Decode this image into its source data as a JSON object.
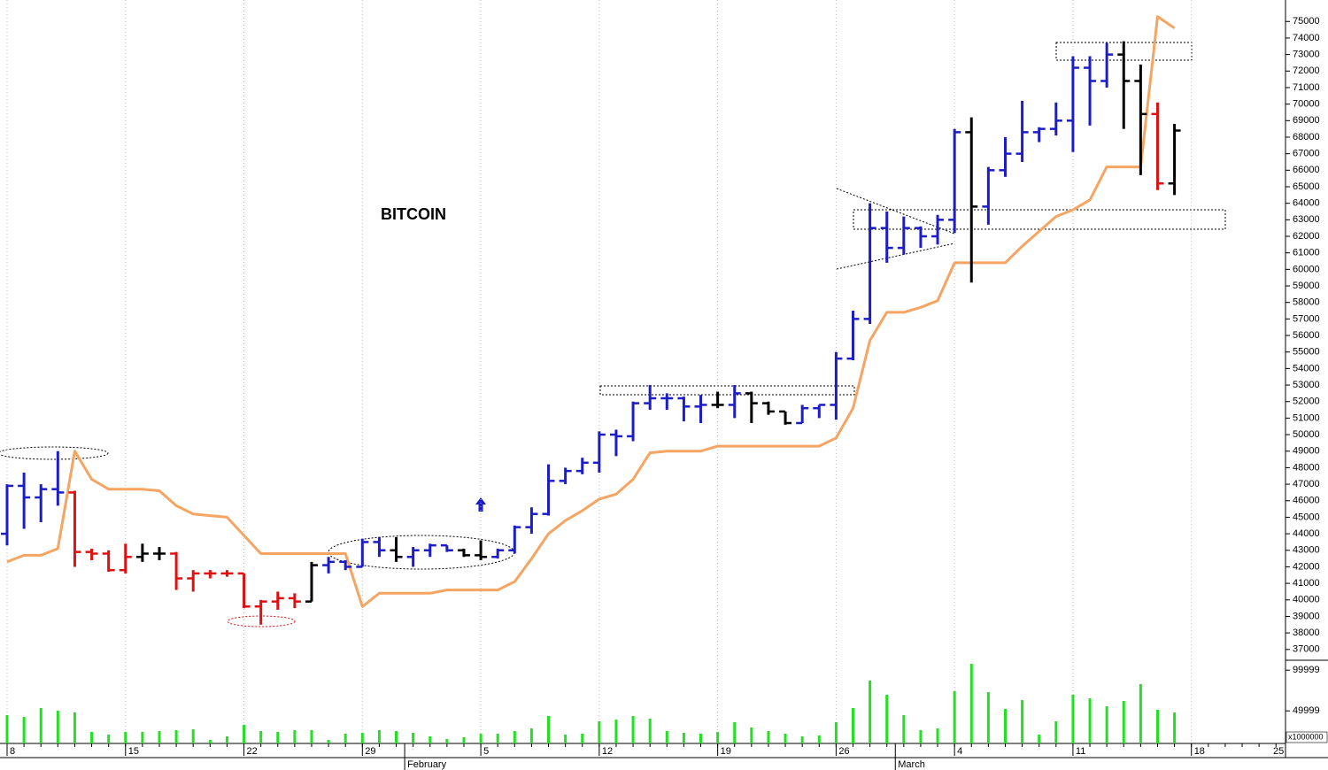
{
  "chart_data": {
    "type": "ohlc",
    "title": "BITCOIN",
    "categories": [
      "8",
      null,
      null,
      null,
      null,
      null,
      null,
      "15",
      null,
      null,
      null,
      null,
      null,
      null,
      "22",
      null,
      null,
      null,
      null,
      null,
      null,
      "29",
      null,
      null,
      null,
      null,
      null,
      null,
      "5",
      null,
      null,
      null,
      null,
      null,
      null,
      "12",
      null,
      null,
      null,
      null,
      null,
      null,
      "19",
      null,
      null,
      null,
      null,
      null,
      null,
      "26",
      null,
      null,
      null,
      null,
      null,
      null,
      "4",
      null,
      null,
      null,
      null,
      null,
      null,
      "11",
      null,
      null,
      null,
      null,
      null,
      null,
      "18",
      null,
      null,
      null,
      null,
      null,
      null,
      "25"
    ],
    "months": [
      null,
      null,
      null,
      null,
      null,
      null,
      null,
      null,
      null,
      null,
      null,
      null,
      null,
      null,
      null,
      null,
      null,
      null,
      null,
      null,
      null,
      null,
      null,
      null,
      "February",
      null,
      null,
      null,
      null,
      null,
      null,
      null,
      null,
      null,
      null,
      null,
      null,
      null,
      null,
      null,
      null,
      null,
      null,
      null,
      null,
      null,
      null,
      null,
      null,
      null,
      null,
      null,
      null,
      "March",
      null,
      null,
      null,
      null,
      null,
      null,
      null,
      null,
      null,
      null,
      null,
      null,
      null,
      null,
      null,
      null,
      null,
      null,
      null,
      null,
      null,
      null,
      null,
      null
    ],
    "open": [
      44000,
      46900,
      46200,
      46700,
      46500,
      42900,
      42800,
      41800,
      42600,
      42800,
      42800,
      41300,
      41600,
      41600,
      41600,
      39600,
      39900,
      40100,
      39900,
      42100,
      42300,
      42000,
      43500,
      43000,
      42600,
      43000,
      43300,
      43000,
      42700,
      42600,
      43000,
      44400,
      45200,
      47200,
      47800,
      48300,
      50000,
      49900,
      51900,
      52200,
      52200,
      51700,
      51800,
      51800,
      52500,
      51900,
      51400,
      50700,
      51600,
      51800,
      54600,
      57000,
      62500,
      61300,
      62500,
      62000,
      63000,
      68300,
      63800,
      66000,
      67000,
      68300,
      68500,
      69000,
      72200,
      71400,
      73000,
      71400,
      69400,
      65200,
      null,
      null,
      null,
      null,
      null,
      null,
      null,
      null
    ],
    "high": [
      47000,
      47700,
      47000,
      49000,
      46600,
      43100,
      43000,
      43400,
      43400,
      43200,
      42900,
      41800,
      41800,
      41800,
      41600,
      40000,
      40500,
      40400,
      42300,
      42600,
      42400,
      43700,
      43800,
      43800,
      43200,
      43400,
      43300,
      43100,
      43600,
      43100,
      44500,
      45600,
      48200,
      48000,
      48600,
      50200,
      50300,
      52000,
      53000,
      52500,
      52300,
      52400,
      52600,
      53000,
      52600,
      52000,
      51400,
      51800,
      51800,
      55000,
      57500,
      64000,
      63500,
      63200,
      62600,
      63300,
      68500,
      69200,
      66200,
      68000,
      70200,
      68600,
      70100,
      72900,
      72900,
      73700,
      73800,
      72400,
      70100,
      68800,
      null,
      null,
      null,
      null,
      null,
      null,
      null,
      null
    ],
    "low": [
      43300,
      44300,
      44700,
      45700,
      42000,
      42400,
      41700,
      41600,
      42300,
      42400,
      40600,
      40500,
      41300,
      41400,
      39500,
      38500,
      39400,
      39500,
      39900,
      41600,
      41800,
      42000,
      42600,
      42300,
      42000,
      42600,
      42900,
      42600,
      42400,
      42500,
      42800,
      44000,
      45100,
      47000,
      47600,
      47700,
      48700,
      49600,
      51500,
      51500,
      50800,
      50700,
      51600,
      51000,
      50700,
      51200,
      50600,
      50700,
      51000,
      50900,
      54500,
      56700,
      60400,
      60900,
      61300,
      61500,
      62200,
      59200,
      62700,
      65600,
      66500,
      67700,
      68100,
      67100,
      68700,
      71000,
      68500,
      65700,
      64800,
      64500,
      null,
      null,
      null,
      null,
      null,
      null,
      null,
      null
    ],
    "close": [
      46900,
      46200,
      46700,
      46500,
      42900,
      42800,
      41800,
      42600,
      42800,
      42800,
      41300,
      41600,
      41600,
      41600,
      39600,
      39900,
      40100,
      39900,
      42100,
      42300,
      42000,
      43500,
      43000,
      42600,
      43000,
      43300,
      43000,
      42700,
      42600,
      43000,
      44400,
      45200,
      47200,
      47800,
      48300,
      50000,
      49900,
      51900,
      52200,
      52200,
      51700,
      51800,
      51800,
      52500,
      51900,
      51400,
      50700,
      51600,
      51800,
      54600,
      57000,
      62500,
      61300,
      62500,
      62000,
      63000,
      68300,
      63800,
      66000,
      67000,
      68300,
      68500,
      69000,
      72200,
      71400,
      73000,
      71400,
      69400,
      65200,
      68400,
      null,
      null,
      null,
      null,
      null,
      null,
      null,
      null
    ],
    "bar_colors": [
      "#1c1cc8",
      "#1c1cc8",
      "#1c1cc8",
      "#1c1cc8",
      "#e01010",
      "#e01010",
      "#e01010",
      "#e01010",
      "#000000",
      "#000000",
      "#e01010",
      "#e01010",
      "#e01010",
      "#e01010",
      "#e01010",
      "#e01010",
      "#e01010",
      "#e01010",
      "#000000",
      "#1c1cc8",
      "#1c1cc8",
      "#1c1cc8",
      "#1c1cc8",
      "#000000",
      "#1c1cc8",
      "#1c1cc8",
      "#1c1cc8",
      "#000000",
      "#000000",
      "#1c1cc8",
      "#1c1cc8",
      "#1c1cc8",
      "#1c1cc8",
      "#1c1cc8",
      "#1c1cc8",
      "#1c1cc8",
      "#1c1cc8",
      "#1c1cc8",
      "#1c1cc8",
      "#1c1cc8",
      "#1c1cc8",
      "#1c1cc8",
      "#000000",
      "#1c1cc8",
      "#000000",
      "#000000",
      "#000000",
      "#1c1cc8",
      "#1c1cc8",
      "#1c1cc8",
      "#1c1cc8",
      "#1c1cc8",
      "#1c1cc8",
      "#1c1cc8",
      "#1c1cc8",
      "#1c1cc8",
      "#1c1cc8",
      "#000000",
      "#1c1cc8",
      "#1c1cc8",
      "#1c1cc8",
      "#1c1cc8",
      "#1c1cc8",
      "#1c1cc8",
      "#1c1cc8",
      "#1c1cc8",
      "#000000",
      "#000000",
      "#e01010",
      "#000000",
      null,
      null,
      null,
      null,
      null,
      null,
      null,
      null
    ],
    "stop": {
      "color": "#f5a462",
      "values": [
        42300,
        42700,
        42700,
        43100,
        49000,
        47300,
        46700,
        46700,
        46700,
        46600,
        45700,
        45200,
        45100,
        45000,
        43900,
        42800,
        42800,
        42800,
        42800,
        42800,
        42800,
        39600,
        40400,
        40400,
        40400,
        40400,
        40600,
        40600,
        40600,
        40600,
        41100,
        42500,
        44000,
        44800,
        45400,
        46100,
        46400,
        47300,
        48900,
        49000,
        49000,
        49000,
        49300,
        49300,
        49300,
        49300,
        49300,
        49300,
        49300,
        49800,
        51600,
        55700,
        57400,
        57400,
        57700,
        58100,
        60400,
        60400,
        60400,
        60400,
        61400,
        62300,
        63200,
        63600,
        64200,
        66200,
        66200,
        66200,
        75300,
        74600,
        null,
        null,
        null,
        null,
        null,
        null,
        null,
        null
      ]
    },
    "ylim": [
      36400,
      76300
    ],
    "yticks": [
      37000,
      38000,
      39000,
      40000,
      41000,
      42000,
      43000,
      44000,
      45000,
      46000,
      47000,
      48000,
      49000,
      50000,
      51000,
      52000,
      53000,
      54000,
      55000,
      56000,
      57000,
      58000,
      59000,
      60000,
      61000,
      62000,
      63000,
      64000,
      65000,
      66000,
      67000,
      68000,
      69000,
      70000,
      71000,
      72000,
      73000,
      74000,
      75000
    ],
    "grid": true,
    "volume": {
      "color": "#22e022",
      "unit_label": "x1000000",
      "ylim": [
        10000,
        110000
      ],
      "yticks": [
        49999,
        99999
      ],
      "values": [
        44800,
        42600,
        53500,
        50200,
        48000,
        24100,
        20900,
        24100,
        24100,
        25200,
        26300,
        27400,
        14300,
        18700,
        32800,
        25200,
        24100,
        26300,
        26300,
        14300,
        22000,
        23000,
        26300,
        25200,
        23000,
        18700,
        15400,
        17600,
        22000,
        22000,
        25200,
        28500,
        43700,
        20900,
        22000,
        37200,
        39300,
        43700,
        40400,
        25200,
        23000,
        22000,
        24100,
        36100,
        29600,
        25200,
        22000,
        18700,
        19800,
        36100,
        53500,
        87200,
        69800,
        44800,
        26300,
        28500,
        74100,
        107800,
        73000,
        52400,
        63300,
        20900,
        37200,
        69800,
        65400,
        55700,
        62200,
        82800,
        51300,
        48000,
        null,
        null,
        null,
        null,
        null,
        null,
        null,
        null
      ]
    }
  }
}
